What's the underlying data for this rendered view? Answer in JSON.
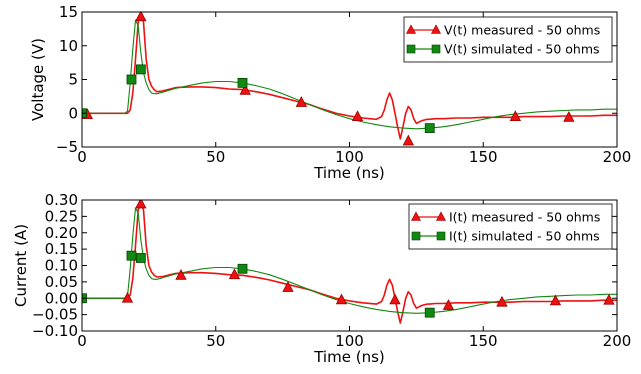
{
  "chart_data": [
    {
      "type": "line",
      "xlabel": "Time (ns)",
      "ylabel": "Voltage (V)",
      "xlim": [
        0,
        200
      ],
      "ylim": [
        -5,
        15
      ],
      "xticks": [
        "0",
        "50",
        "100",
        "150",
        "200"
      ],
      "yticks": [
        "−5",
        "0",
        "5",
        "10",
        "15"
      ],
      "ytick_values": [
        -5,
        0,
        5,
        10,
        15
      ],
      "legend_position": "top-right",
      "series": [
        {
          "name": "V(t) measured - 50 ohms",
          "color": "#ee1111",
          "marker": "triangle",
          "x": [
            0,
            17,
            18,
            19,
            20,
            21,
            22,
            23,
            24,
            25,
            26,
            27,
            28,
            30,
            33,
            35,
            40,
            45,
            50,
            55,
            60,
            65,
            70,
            75,
            80,
            85,
            90,
            95,
            100,
            105,
            110,
            112,
            113,
            114,
            115,
            116,
            117,
            118,
            119,
            120,
            121,
            122,
            123,
            124,
            125,
            126,
            127,
            128,
            129,
            130,
            132,
            135,
            140,
            145,
            150,
            155,
            160,
            165,
            170,
            175,
            180,
            185,
            190,
            195,
            200
          ],
          "y": [
            0,
            0,
            0.5,
            3,
            8,
            13.5,
            14.5,
            13.5,
            8,
            5,
            4,
            3.5,
            3.2,
            3.3,
            3.6,
            3.8,
            3.9,
            3.9,
            3.8,
            3.6,
            3.5,
            3.2,
            2.8,
            2.3,
            1.8,
            1.3,
            0.6,
            0,
            -0.4,
            -0.7,
            -0.9,
            -0.5,
            0.5,
            2,
            3,
            2,
            0,
            -2,
            -3.8,
            -2,
            0,
            1,
            0.5,
            -0.8,
            -1.5,
            -1.3,
            -1.1,
            -1,
            -0.9,
            -0.9,
            -0.8,
            -0.8,
            -0.7,
            -0.7,
            -0.6,
            -0.6,
            -0.6,
            -0.5,
            -0.5,
            -0.5,
            -0.4,
            -0.4,
            -0.4,
            -0.3,
            -0.3
          ],
          "marker_x": [
            2,
            22,
            61,
            82,
            103,
            122,
            162,
            182
          ],
          "marker_y": [
            -0.2,
            14.3,
            3.4,
            1.6,
            -0.5,
            -4.1,
            -0.5,
            -0.6
          ]
        },
        {
          "name": "V(t) simulated - 50 ohms",
          "color": "#118811",
          "marker": "square",
          "x": [
            0,
            16,
            17,
            18,
            19,
            20,
            21,
            22,
            23,
            24,
            25,
            26,
            27,
            28,
            30,
            35,
            40,
            45,
            50,
            55,
            60,
            65,
            70,
            75,
            80,
            85,
            90,
            95,
            100,
            105,
            110,
            115,
            120,
            125,
            130,
            135,
            140,
            145,
            150,
            155,
            160,
            165,
            170,
            175,
            180,
            185,
            190,
            195,
            200
          ],
          "y": [
            0,
            0,
            0.3,
            4.5,
            9.5,
            13.8,
            13,
            9,
            6,
            4.5,
            3.5,
            3,
            2.9,
            2.9,
            3.1,
            3.7,
            4.1,
            4.5,
            4.7,
            4.7,
            4.5,
            4.1,
            3.6,
            2.9,
            2.1,
            1.3,
            0.5,
            -0.2,
            -0.8,
            -1.3,
            -1.7,
            -2,
            -2.2,
            -2.3,
            -2.2,
            -2,
            -1.7,
            -1.3,
            -0.9,
            -0.5,
            -0.2,
            0,
            0.2,
            0.3,
            0.4,
            0.5,
            0.5,
            0.6,
            0.6
          ],
          "marker_x": [
            0,
            18.5,
            22,
            60,
            130
          ],
          "marker_y": [
            0,
            5,
            6.5,
            4.5,
            -2.2
          ]
        }
      ]
    },
    {
      "type": "line",
      "xlabel": "Time (ns)",
      "ylabel": "Current (A)",
      "xlim": [
        0,
        200
      ],
      "ylim": [
        -0.1,
        0.3
      ],
      "xticks": [
        "0",
        "50",
        "100",
        "150",
        "200"
      ],
      "yticks": [
        "−0.10",
        "−0.05",
        "0.00",
        "0.05",
        "0.10",
        "0.15",
        "0.20",
        "0.25",
        "0.30"
      ],
      "ytick_values": [
        -0.1,
        -0.05,
        0,
        0.05,
        0.1,
        0.15,
        0.2,
        0.25,
        0.3
      ],
      "legend_position": "top-right",
      "series": [
        {
          "name": "I(t) measured - 50 ohms",
          "color": "#ee1111",
          "marker": "triangle",
          "x": [
            0,
            17,
            18,
            19,
            20,
            21,
            22,
            23,
            24,
            25,
            26,
            27,
            28,
            30,
            33,
            35,
            40,
            45,
            50,
            55,
            60,
            65,
            70,
            75,
            80,
            85,
            90,
            95,
            100,
            105,
            110,
            112,
            113,
            114,
            115,
            116,
            117,
            118,
            119,
            120,
            121,
            122,
            123,
            124,
            125,
            126,
            127,
            128,
            129,
            130,
            132,
            135,
            140,
            145,
            150,
            155,
            160,
            165,
            170,
            175,
            180,
            185,
            190,
            195,
            200
          ],
          "y": [
            0,
            0,
            0.01,
            0.06,
            0.16,
            0.27,
            0.29,
            0.27,
            0.16,
            0.1,
            0.08,
            0.07,
            0.065,
            0.066,
            0.072,
            0.076,
            0.078,
            0.078,
            0.076,
            0.072,
            0.07,
            0.064,
            0.056,
            0.046,
            0.036,
            0.026,
            0.012,
            0,
            -0.008,
            -0.014,
            -0.018,
            -0.01,
            0.01,
            0.04,
            0.058,
            0.04,
            0,
            -0.04,
            -0.076,
            -0.04,
            0,
            0.02,
            0.01,
            -0.016,
            -0.03,
            -0.026,
            -0.022,
            -0.02,
            -0.018,
            -0.018,
            -0.016,
            -0.016,
            -0.014,
            -0.014,
            -0.012,
            -0.012,
            -0.012,
            -0.01,
            -0.01,
            -0.01,
            -0.008,
            -0.008,
            -0.008,
            -0.006,
            -0.006
          ],
          "marker_x": [
            17,
            22,
            37,
            57,
            77,
            97,
            117,
            137,
            157,
            177,
            197
          ],
          "marker_y": [
            0,
            0.288,
            0.07,
            0.072,
            0.033,
            -0.005,
            -0.005,
            -0.022,
            -0.012,
            -0.008,
            -0.006
          ]
        },
        {
          "name": "I(t) simulated - 50 ohms",
          "color": "#118811",
          "marker": "square",
          "x": [
            0,
            16,
            17,
            18,
            19,
            20,
            21,
            22,
            23,
            24,
            25,
            26,
            27,
            28,
            30,
            35,
            40,
            45,
            50,
            55,
            60,
            65,
            70,
            75,
            80,
            85,
            90,
            95,
            100,
            105,
            110,
            115,
            120,
            125,
            130,
            135,
            140,
            145,
            150,
            155,
            160,
            165,
            170,
            175,
            180,
            185,
            190,
            195,
            200
          ],
          "y": [
            0,
            0,
            0.006,
            0.09,
            0.19,
            0.276,
            0.26,
            0.18,
            0.12,
            0.09,
            0.07,
            0.06,
            0.058,
            0.058,
            0.062,
            0.074,
            0.082,
            0.09,
            0.094,
            0.094,
            0.09,
            0.082,
            0.072,
            0.058,
            0.042,
            0.026,
            0.01,
            -0.004,
            -0.016,
            -0.026,
            -0.034,
            -0.04,
            -0.044,
            -0.046,
            -0.044,
            -0.04,
            -0.034,
            -0.026,
            -0.018,
            -0.01,
            -0.004,
            0,
            0.004,
            0.006,
            0.008,
            0.01,
            0.01,
            0.012,
            0.012
          ],
          "marker_x": [
            0,
            18.5,
            22,
            60,
            130
          ],
          "marker_y": [
            0,
            0.13,
            0.123,
            0.09,
            -0.044
          ]
        }
      ]
    }
  ]
}
